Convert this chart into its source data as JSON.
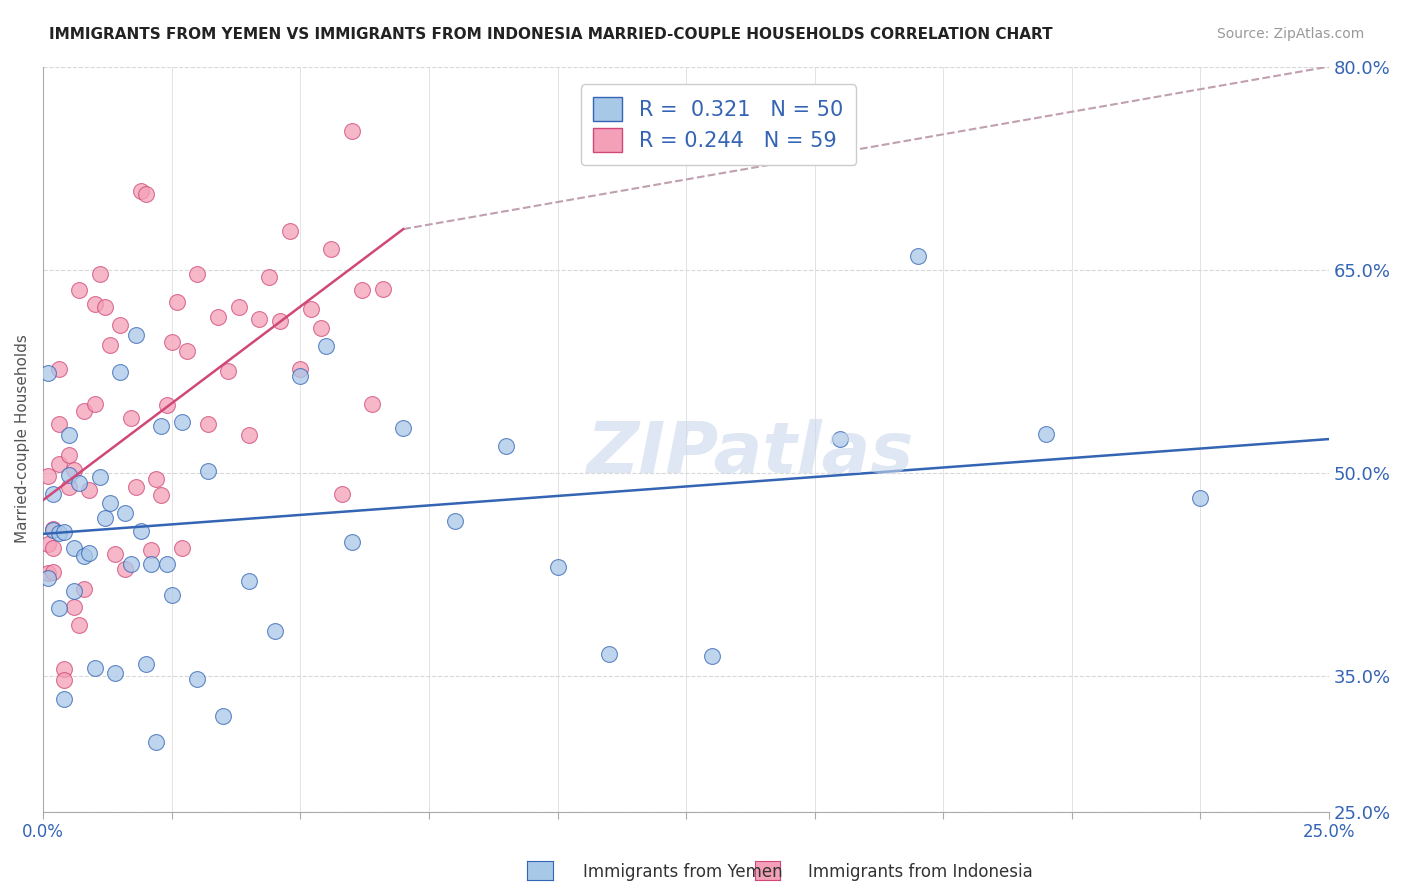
{
  "title": "IMMIGRANTS FROM YEMEN VS IMMIGRANTS FROM INDONESIA MARRIED-COUPLE HOUSEHOLDS CORRELATION CHART",
  "source": "Source: ZipAtlas.com",
  "xlabel_legend1": "Immigrants from Yemen",
  "xlabel_legend2": "Immigrants from Indonesia",
  "ylabel": "Married-couple Households",
  "R_yemen": 0.321,
  "N_yemen": 50,
  "R_indonesia": 0.244,
  "N_indonesia": 59,
  "color_yemen": "#a8c8e8",
  "color_indonesia": "#f4a0b8",
  "trend_color_yemen": "#3464b4",
  "trend_color_indonesia": "#d04878",
  "xmin": 0.0,
  "xmax": 0.25,
  "ymin": 0.25,
  "ymax": 0.8,
  "watermark": "ZIPatlas",
  "background_color": "#ffffff",
  "grid_color": "#d8d8d8"
}
